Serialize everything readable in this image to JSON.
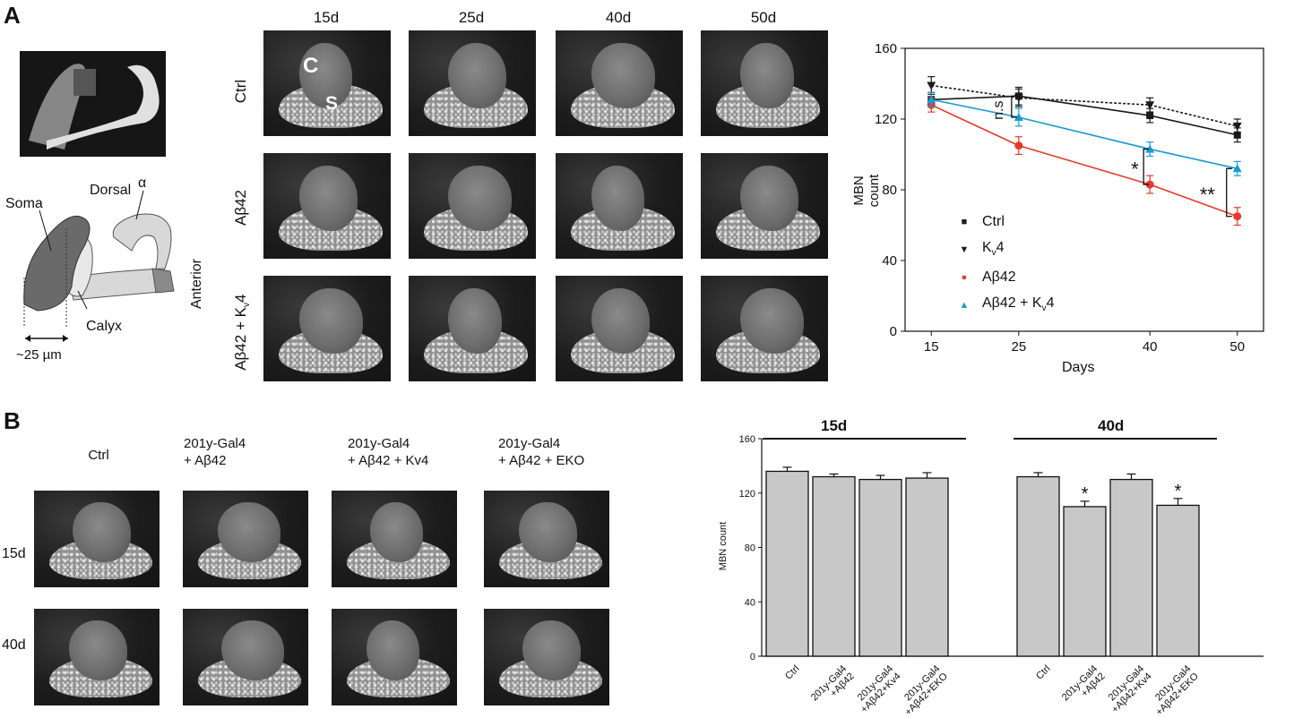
{
  "panel_a": {
    "letter": "A",
    "diagram": {
      "labels": {
        "dorsal": "Dorsal",
        "soma": "Soma",
        "alpha": "α",
        "anterior": "Anterior",
        "calyx": "Calyx",
        "scale": "~25 µm"
      }
    },
    "columns": [
      "15d",
      "25d",
      "40d",
      "50d"
    ],
    "rows": [
      {
        "label": "Ctrl"
      },
      {
        "label": "Aβ42"
      },
      {
        "label_main": "Aβ42 + K",
        "label_sub": "v",
        "label_end": "4"
      }
    ],
    "micro_letters": {
      "c": "C",
      "s": "S"
    }
  },
  "panel_b": {
    "letter": "B",
    "columns": [
      {
        "line1": "Ctrl",
        "line2": ""
      },
      {
        "line1": "201y-Gal4",
        "line2": "+ Aβ42"
      },
      {
        "line1": "201y-Gal4",
        "line2": "+ Aβ42 + Kv4"
      },
      {
        "line1": "201y-Gal4",
        "line2": "+ Aβ42 + EKO"
      }
    ],
    "rows": [
      "15d",
      "40d"
    ]
  },
  "chart_data": [
    {
      "type": "line",
      "title": "",
      "xlabel": "Days",
      "ylabel": "MBN count",
      "x": [
        15,
        25,
        40,
        50
      ],
      "xlim": [
        12,
        53
      ],
      "ylim": [
        0,
        160
      ],
      "yticks": [
        0,
        40,
        80,
        120,
        160
      ],
      "xticks": [
        15,
        25,
        40,
        50
      ],
      "series": [
        {
          "name": "Ctrl",
          "marker": "square",
          "color": "#1a1a1a",
          "dash": false,
          "values": [
            131,
            133,
            122,
            111
          ],
          "err": [
            4,
            5,
            4,
            4
          ]
        },
        {
          "name": "Kv4",
          "name_main": "K",
          "name_sub": "v",
          "name_end": "4",
          "marker": "triangle-down",
          "color": "#1a1a1a",
          "dash": true,
          "values": [
            139,
            132,
            128,
            116
          ],
          "err": [
            5,
            5,
            4,
            4
          ]
        },
        {
          "name": "Aβ42",
          "marker": "circle",
          "color": "#e8372b",
          "dash": false,
          "values": [
            128,
            105,
            83,
            65
          ],
          "err": [
            4,
            5,
            5,
            5
          ]
        },
        {
          "name": "Aβ42 + Kv4",
          "name_main": "Aβ42 + K",
          "name_sub": "v",
          "name_end": "4",
          "marker": "triangle-up",
          "color": "#1a9ad6",
          "dash": false,
          "values": [
            131,
            121,
            103,
            92
          ],
          "err": [
            4,
            5,
            4,
            4
          ]
        }
      ],
      "annotations": [
        "n.s",
        "*",
        "**"
      ],
      "legend": "bottom-left"
    },
    {
      "type": "bar",
      "title": "",
      "xlabel": "",
      "ylabel": "MBN count",
      "ylim": [
        0,
        160
      ],
      "yticks": [
        0,
        40,
        80,
        120,
        160
      ],
      "groups": [
        {
          "label": "15d",
          "categories": [
            "Ctrl",
            "201y-Gal4 +Aβ42",
            "201y-Gal4 +Aβ42+Kv4",
            "201y-Gal4 +Aβ42+EKO"
          ],
          "values": [
            136,
            132,
            130,
            131
          ],
          "err": [
            3,
            2,
            3,
            4
          ],
          "sig": [
            "",
            "",
            "",
            ""
          ]
        },
        {
          "label": "40d",
          "categories": [
            "Ctrl",
            "201y-Gal4 +Aβ42",
            "201y-Gal4 +Aβ42+Kv4",
            "201y-Gal4 +Aβ42+EKO"
          ],
          "values": [
            132,
            110,
            130,
            111
          ],
          "err": [
            3,
            4,
            4,
            5
          ],
          "sig": [
            "",
            "*",
            "",
            "*"
          ]
        }
      ],
      "color": "#c8c8c8"
    }
  ]
}
